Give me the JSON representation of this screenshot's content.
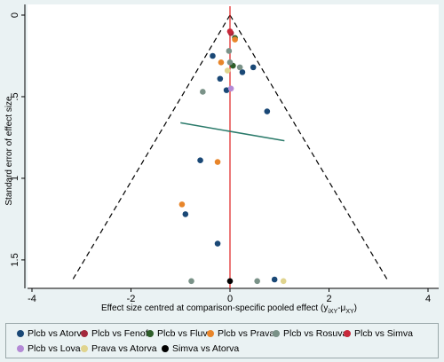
{
  "chart_data": {
    "type": "scatter",
    "title": "",
    "xlabel": "Effect size centred at comparison-specific pooled effect (y",
    "xlabel_sub": "iXY",
    "xlabel_mid": "-μ",
    "xlabel_sub2": "XY",
    "xlabel_end": ")",
    "ylabel": "Standard error of effect size",
    "xlim": [
      -4,
      4
    ],
    "ylim": [
      0,
      1.62
    ],
    "y_reversed": true,
    "x_ticks": [
      -4,
      -2,
      0,
      2,
      4
    ],
    "y_ticks": [
      0,
      0.5,
      1,
      1.5
    ],
    "y_tick_labels": [
      "0",
      ".5",
      "1",
      "1.5"
    ],
    "funnel": {
      "apex_se": 0,
      "se_max": 1.62,
      "z": 1.96
    },
    "null_line_x": 0,
    "regression_line": {
      "x": [
        -1,
        1.1
      ],
      "y": [
        0.66,
        0.77
      ]
    },
    "series": [
      {
        "name": "Plcb vs Atorva",
        "color": "#1a4876",
        "points": [
          [
            -0.35,
            0.25
          ],
          [
            0.25,
            0.35
          ],
          [
            0.47,
            0.32
          ],
          [
            -0.2,
            0.39
          ],
          [
            -0.07,
            0.46
          ],
          [
            0.75,
            0.59
          ],
          [
            -0.6,
            0.89
          ],
          [
            -0.9,
            1.22
          ],
          [
            -0.25,
            1.4
          ],
          [
            0.9,
            1.62
          ]
        ]
      },
      {
        "name": "Plcb vs Fenof",
        "color": "#a3283c",
        "points": [
          [
            0.02,
            0.11
          ]
        ]
      },
      {
        "name": "Plcb vs Fluva",
        "color": "#2e5e2a",
        "points": [
          [
            0.1,
            0.14
          ],
          [
            0.06,
            0.31
          ]
        ]
      },
      {
        "name": "Plcb vs Prava",
        "color": "#e8852a",
        "points": [
          [
            0.1,
            0.15
          ],
          [
            -0.18,
            0.29
          ],
          [
            -0.25,
            0.9
          ],
          [
            -0.97,
            1.16
          ]
        ]
      },
      {
        "name": "Plcb vs Rosuva",
        "color": "#7a9288",
        "points": [
          [
            -0.02,
            0.22
          ],
          [
            0.0,
            0.29
          ],
          [
            0.2,
            0.32
          ],
          [
            -0.55,
            0.47
          ],
          [
            -0.78,
            1.63
          ],
          [
            0.55,
            1.63
          ]
        ]
      },
      {
        "name": "Plcb vs Simva",
        "color": "#c8283a",
        "points": [
          [
            0.0,
            0.1
          ]
        ]
      },
      {
        "name": "Plcb vs Lova",
        "color": "#b48ad6",
        "points": [
          [
            0.02,
            0.45
          ]
        ]
      },
      {
        "name": "Prava vs Atorva",
        "color": "#e0d48e",
        "points": [
          [
            -0.05,
            0.34
          ],
          [
            1.08,
            1.63
          ]
        ]
      },
      {
        "name": "Simva vs Atorva",
        "color": "#000000",
        "points": [
          [
            0.0,
            1.63
          ]
        ]
      }
    ]
  }
}
